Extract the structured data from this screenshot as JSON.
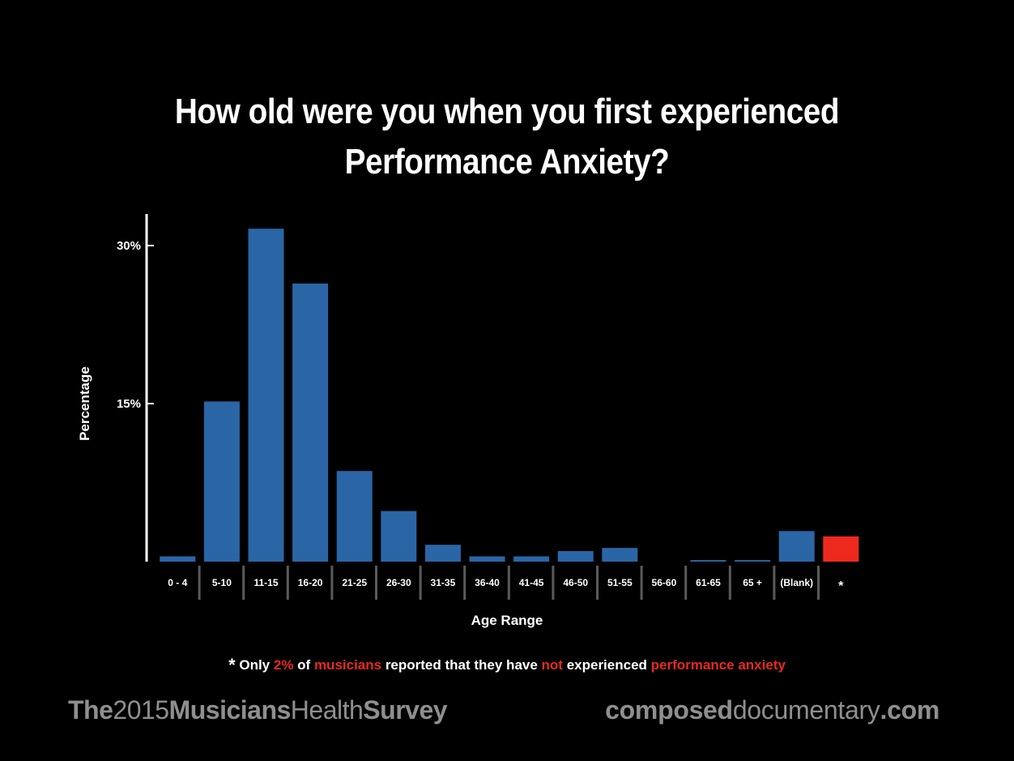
{
  "title_line1": "How old were you when you first experienced",
  "title_line2": "Performance Anxiety?",
  "chart_data": {
    "type": "bar",
    "title": "How old were you when you first experienced Performance Anxiety?",
    "xlabel": "Age Range",
    "ylabel": "Percentage",
    "categories": [
      "0 - 4",
      "5-10",
      "11-15",
      "16-20",
      "21-25",
      "26-30",
      "31-35",
      "36-40",
      "41-45",
      "46-50",
      "51-55",
      "56-60",
      "61-65",
      "65 +",
      "(Blank)",
      "*"
    ],
    "values": [
      0.5,
      15.2,
      31.6,
      26.4,
      8.6,
      4.8,
      1.6,
      0.5,
      0.5,
      1.0,
      1.3,
      0,
      0.15,
      0.15,
      2.9,
      2.4
    ],
    "ylim": [
      0,
      33
    ],
    "yticks": [
      15,
      30
    ],
    "ytick_labels": [
      "15%",
      "30%"
    ],
    "colors": {
      "default": "#2a66a6",
      "highlight": "#ee2a1f"
    },
    "highlight_category": "*",
    "grid": false,
    "legend": "none"
  },
  "footnote": {
    "star": "*",
    "p1": " Only ",
    "r1": "2%",
    "p2": " of ",
    "r2": "musicians",
    "p3": " reported that they have ",
    "r3": "not",
    "p4": " experienced ",
    "r4": "performance anxiety"
  },
  "brand_left": {
    "a": "The",
    "b": "2015",
    "c": "Musicians",
    "d": "Health",
    "e": "Survey"
  },
  "brand_right": {
    "a": "composed",
    "b": "documentary",
    "c": ".com"
  }
}
